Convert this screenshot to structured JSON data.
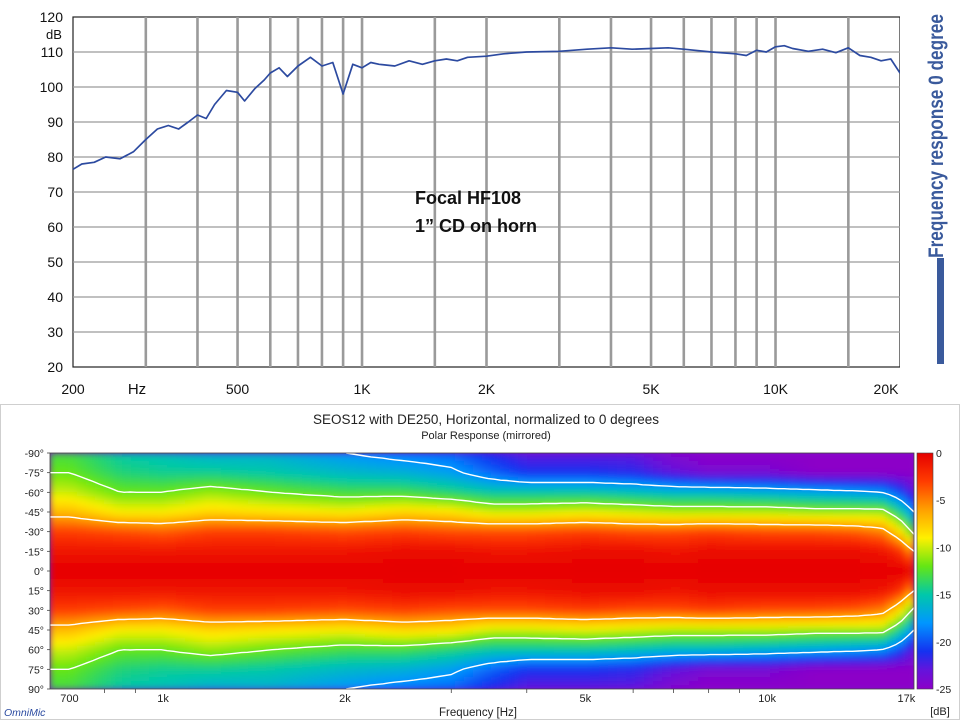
{
  "side_title": "Frequency response 0 degree",
  "accent_color": "#3a5a9c",
  "chart_data": [
    {
      "type": "line",
      "title": "",
      "annotation": [
        "Focal HF108",
        "1” CD on horn"
      ],
      "xlabel": "Hz",
      "ylabel": "dB",
      "x_scale": "log",
      "xlim": [
        200,
        20000
      ],
      "ylim": [
        20,
        120
      ],
      "grid": true,
      "x_tick_labels": [
        {
          "value": 200,
          "label": "200"
        },
        {
          "value": 500,
          "label": "500"
        },
        {
          "value": 1000,
          "label": "1K"
        },
        {
          "value": 2000,
          "label": "2K"
        },
        {
          "value": 5000,
          "label": "5K"
        },
        {
          "value": 10000,
          "label": "10K"
        },
        {
          "value": 20000,
          "label": "20K"
        }
      ],
      "y_ticks": [
        20,
        30,
        40,
        50,
        60,
        70,
        80,
        90,
        100,
        110,
        120
      ],
      "line_color": "#2c4aa0",
      "series": [
        {
          "x": [
            200,
            210,
            225,
            240,
            260,
            280,
            300,
            320,
            340,
            360,
            380,
            400,
            420,
            440,
            470,
            500,
            520,
            550,
            580,
            600,
            630,
            660,
            700,
            750,
            800,
            850,
            900,
            950,
            1000,
            1050,
            1100,
            1200,
            1300,
            1400,
            1500,
            1600,
            1700,
            1800,
            2000,
            2200,
            2500,
            3000,
            3500,
            4000,
            4500,
            5000,
            5500,
            6000,
            7000,
            8000,
            8500,
            9000,
            9500,
            10000,
            10500,
            11000,
            12000,
            13000,
            14000,
            15000,
            16000,
            17000,
            18000,
            19000,
            20000
          ],
          "y": [
            76.5,
            78,
            78.5,
            80,
            79.5,
            81.5,
            85,
            88,
            89,
            88,
            90,
            92,
            91,
            95,
            99,
            98.5,
            96,
            99.5,
            102,
            104,
            105.5,
            103,
            106,
            108.5,
            106,
            107,
            98,
            106.5,
            105.5,
            107,
            106.5,
            106,
            107.5,
            106.5,
            107.5,
            108,
            107.5,
            108.5,
            108.8,
            109.5,
            110,
            110.2,
            110.8,
            111.2,
            110.8,
            111,
            111.2,
            110.8,
            110,
            109.5,
            109,
            110.5,
            110,
            111.5,
            111.8,
            111,
            110.2,
            110.8,
            109.8,
            111.2,
            109,
            108.5,
            107.5,
            108,
            104
          ]
        }
      ]
    },
    {
      "type": "heatmap",
      "title": "SEOS12 with DE250, Horizontal, normalized to 0 degrees",
      "subtitle": "Polar Response (mirrored)",
      "xlabel": "Frequency [Hz]",
      "x_scale": "log",
      "xlim": [
        650,
        17500
      ],
      "x_tick_labels": [
        {
          "value": 700,
          "label": "700"
        },
        {
          "value": 1000,
          "label": "1k"
        },
        {
          "value": 2000,
          "label": "2k"
        },
        {
          "value": 5000,
          "label": "5k"
        },
        {
          "value": 10000,
          "label": "10k"
        },
        {
          "value": 17000,
          "label": "17k"
        }
      ],
      "y_tick_labels": [
        "-90°",
        "-75°",
        "-60°",
        "-45°",
        "-30°",
        "-15°",
        "0°",
        "15°",
        "30°",
        "45°",
        "60°",
        "75°",
        "90°"
      ],
      "ylim_deg": [
        -90,
        90
      ],
      "colorbar_label": "[dB]",
      "colorbar_ticks": [
        "0",
        "-5",
        "-10",
        "-15",
        "-20",
        "-25"
      ],
      "colorbar_range": [
        -25,
        0
      ],
      "contour_levels_db": [
        -6,
        -12,
        -18
      ],
      "footer_logo": "OmniMic",
      "frequencies": [
        700,
        850,
        1000,
        1200,
        1500,
        2000,
        2500,
        3000,
        3500,
        4000,
        5000,
        6000,
        7000,
        8000,
        10000,
        12000,
        14000,
        15500,
        16500,
        17500
      ],
      "angles": [
        0,
        15,
        30,
        45,
        60,
        75,
        90
      ],
      "values_db": [
        [
          0,
          0,
          0,
          0,
          0,
          0,
          0,
          0,
          0,
          0,
          0,
          0,
          0,
          0,
          0,
          0,
          0,
          0,
          0,
          0
        ],
        [
          -1,
          -1,
          -1,
          -1,
          -1,
          -1,
          -0.5,
          -0.5,
          -1,
          -1,
          -0.5,
          -0.5,
          -1,
          -0.5,
          -0.5,
          -0.5,
          -0.5,
          -1,
          -2,
          -6
        ],
        [
          -3,
          -3.5,
          -4,
          -3,
          -3,
          -3.5,
          -3,
          -3.5,
          -3.5,
          -3.5,
          -3,
          -3.5,
          -3.5,
          -3,
          -3.5,
          -3.5,
          -4,
          -5,
          -8,
          -13
        ],
        [
          -7,
          -9,
          -9,
          -8,
          -8.5,
          -9,
          -8,
          -8.5,
          -10,
          -10,
          -9.5,
          -10,
          -10.5,
          -10.5,
          -10.5,
          -11,
          -11,
          -11,
          -14,
          -18
        ],
        [
          -10,
          -12,
          -12,
          -11,
          -12,
          -13,
          -13,
          -14,
          -15,
          -15,
          -15,
          -15.5,
          -16,
          -16,
          -16.5,
          -17,
          -17.5,
          -18,
          -20,
          -23
        ],
        [
          -12,
          -14,
          -14.5,
          -14.5,
          -15,
          -16,
          -16.5,
          -17.5,
          -19.5,
          -21,
          -21,
          -21.5,
          -23,
          -24,
          -24,
          -25,
          -25,
          -25,
          -25,
          -25
        ],
        [
          -13,
          -15,
          -15.5,
          -16.5,
          -16.5,
          -18,
          -19,
          -19.5,
          -21.5,
          -23,
          -23,
          -23,
          -24.5,
          -25,
          -25,
          -25,
          -25,
          -25,
          -25,
          -25
        ]
      ]
    }
  ]
}
